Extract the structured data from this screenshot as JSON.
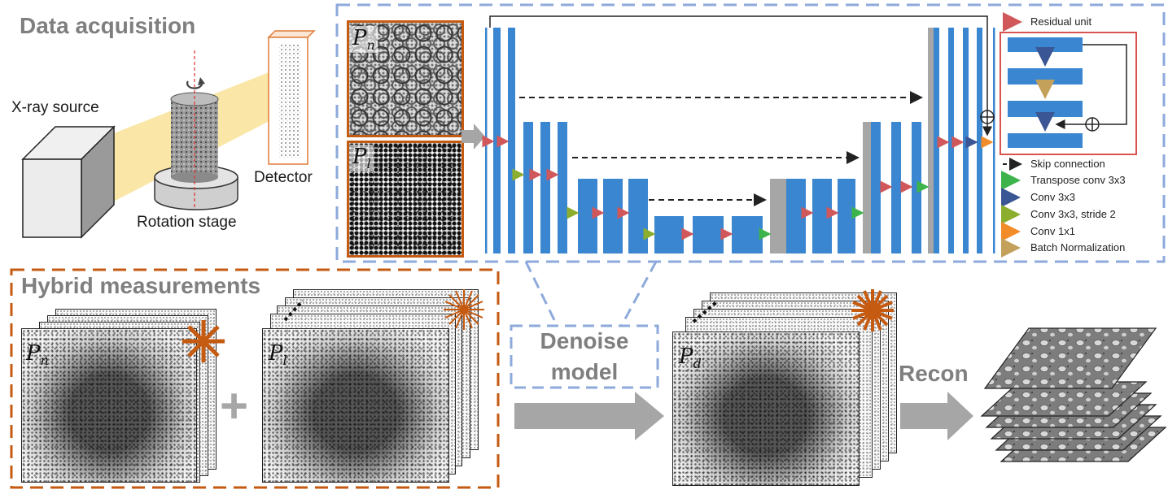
{
  "headings": {
    "data_acquisition": "Data acquisition",
    "hybrid_measurements": "Hybrid measurements",
    "denoise_model_line1": "Denoise",
    "denoise_model_line2": "model",
    "recon": "Recon"
  },
  "labels": {
    "xray_source": "X-ray source",
    "detector": "Detector",
    "rotation_stage": "Rotation stage"
  },
  "symbols": {
    "pn_base": "P",
    "pn_sub": "n",
    "pl_base": "P",
    "pl_sub": "l",
    "pd_base": "P",
    "pd_sub": "d",
    "plus": "+"
  },
  "legend": {
    "residual_unit": "Residual unit",
    "skip_connection": "Skip connection",
    "transpose_conv": "Transpose conv 3x3",
    "conv3x3": "Conv 3x3",
    "conv3x3_stride2": "Conv 3x3, stride 2",
    "conv1x1": "Conv 1x1",
    "batch_norm": "Batch Normalization"
  },
  "colors": {
    "block_blue": "#3a86d0",
    "concat_gray": "#a6a6a6",
    "dashed_blue": "#8eaadb",
    "dashed_orange": "#c55a11",
    "arrow_gray": "#a6a6a6",
    "residual_red": "#d0575a",
    "transpose_green": "#3cb44b",
    "conv_navy": "#3b5694",
    "stride_olive": "#8cae2e",
    "conv1x1_orange": "#f28c28",
    "bn_tan": "#c4a15a",
    "beam_yellow": "#f7d56c"
  },
  "icons": {
    "rotation": "rotation-arrow-icon",
    "burst": "starburst-icon",
    "plus": "plus-icon",
    "sum": "circled-plus-icon"
  }
}
